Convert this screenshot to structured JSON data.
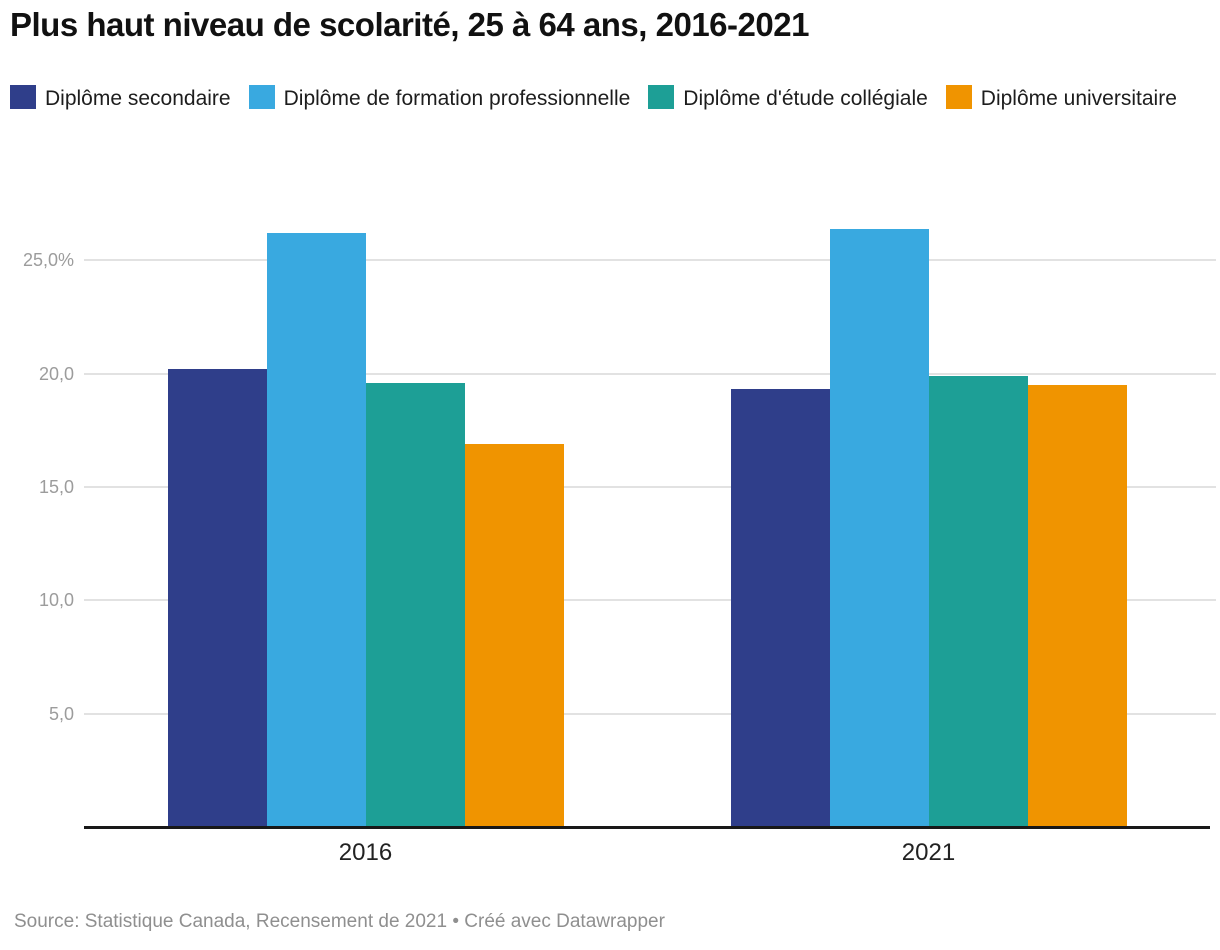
{
  "title": "Plus haut niveau de scolarité, 25 à 64 ans, 2016-2021",
  "footer": {
    "text": "Source: Statistique Canada, Recensement de 2021 • Créé avec Datawrapper"
  },
  "colors": {
    "secondaire": "#2f3e8a",
    "formation_professionnelle": "#39a9e0",
    "collegiale": "#1d9f96",
    "universitaire": "#f09400",
    "gridline": "#e2e2e2",
    "axis": "#181818"
  },
  "chart_data": {
    "type": "bar",
    "title": "Plus haut niveau de scolarité, 25 à 64 ans, 2016-2021",
    "categories": [
      "2016",
      "2021"
    ],
    "series": [
      {
        "name": "Diplôme secondaire",
        "color": "#2f3e8a",
        "values": [
          20.2,
          19.3
        ]
      },
      {
        "name": "Diplôme de formation professionnelle",
        "color": "#39a9e0",
        "values": [
          26.2,
          26.4
        ]
      },
      {
        "name": "Diplôme d'étude collégiale",
        "color": "#1d9f96",
        "values": [
          19.6,
          19.9
        ]
      },
      {
        "name": "Diplôme universitaire",
        "color": "#f09400",
        "values": [
          16.9,
          19.5
        ]
      }
    ],
    "xlabel": "",
    "ylabel": "",
    "ylim": [
      0,
      27.6
    ],
    "yticks": [
      {
        "value": 5,
        "label": "5,0"
      },
      {
        "value": 10,
        "label": "10,0"
      },
      {
        "value": 15,
        "label": "15,0"
      },
      {
        "value": 20,
        "label": "20,0"
      },
      {
        "value": 25,
        "label": "25,0%"
      }
    ],
    "grid": true,
    "legend_position": "top",
    "unit": "%"
  }
}
